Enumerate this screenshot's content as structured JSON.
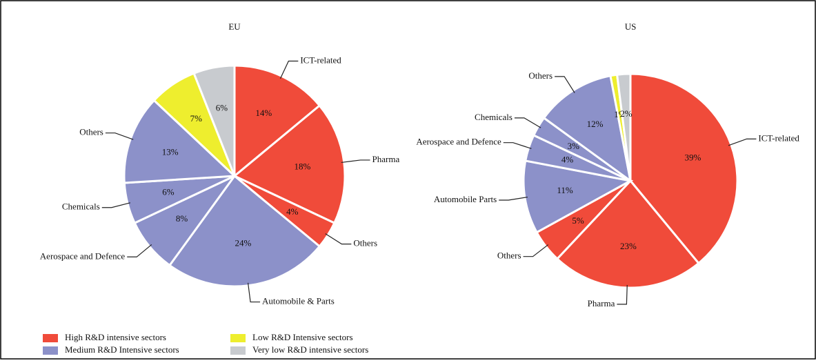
{
  "chart_data": [
    {
      "type": "pie",
      "title": "EU",
      "categories": [
        "ICT-related",
        "Pharma",
        "Others",
        "Automobile & Parts",
        "Aerospace and Defence",
        "Chemicals",
        "Others",
        null,
        null
      ],
      "values": [
        14,
        18,
        4,
        24,
        8,
        6,
        13,
        7,
        6
      ],
      "value_labels": [
        "14%",
        "18%",
        "4%",
        "24%",
        "8%",
        "6%",
        "13%",
        "7%",
        "6%"
      ],
      "colors": [
        "#f04b3a",
        "#f04b3a",
        "#f04b3a",
        "#8c91c9",
        "#8c91c9",
        "#8c91c9",
        "#8c91c9",
        "#eeee2e",
        "#c8cbcf"
      ]
    },
    {
      "type": "pie",
      "title": "US",
      "categories": [
        "ICT-related",
        "Pharma",
        "Others",
        "Automobile Parts",
        "Aerospace and Defence",
        "Chemicals",
        "Others",
        null,
        null
      ],
      "values": [
        39,
        23,
        5,
        11,
        4,
        3,
        12,
        1,
        2
      ],
      "value_labels": [
        "39%",
        "23%",
        "5%",
        "11%",
        "4%",
        "3%",
        "12%",
        "1%",
        "2%"
      ],
      "colors": [
        "#f04b3a",
        "#f04b3a",
        "#f04b3a",
        "#8c91c9",
        "#8c91c9",
        "#8c91c9",
        "#8c91c9",
        "#eeee2e",
        "#c8cbcf"
      ]
    }
  ],
  "legend": {
    "entries": [
      {
        "name": "High R&D intensive sectors",
        "color": "#f04b3a"
      },
      {
        "name": "Low R&D Intensive sectors",
        "color": "#eeee2e"
      },
      {
        "name": "Medium R&D Intensive sectors",
        "color": "#8c91c9"
      },
      {
        "name": "Very low R&D intensive sectors",
        "color": "#c8cbcf"
      }
    ]
  }
}
